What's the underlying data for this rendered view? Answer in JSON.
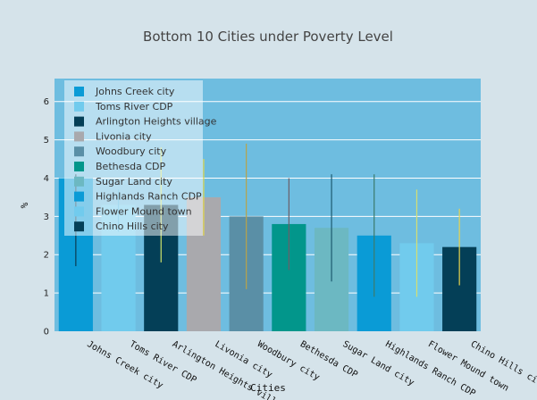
{
  "chart_data": {
    "type": "bar",
    "title": "Bottom 10 Cities under Poverty Level",
    "xlabel": "Cities",
    "ylabel": "%",
    "ylim": [
      0,
      6.6
    ],
    "yticks": [
      0,
      1,
      2,
      3,
      4,
      5,
      6
    ],
    "grid": true,
    "legend_position": "top-left",
    "background_color": "#d5e3ea",
    "plot_color": "#6ebde0",
    "series": [
      {
        "name": "Johns Creek city",
        "category": "Johns Creek city",
        "value": 4.0,
        "error": [
          1.7,
          4.1
        ],
        "color": "#0a9bd6",
        "error_color": "#0b3a52"
      },
      {
        "name": "Toms River CDP",
        "category": "Toms River CDP",
        "value": 3.3,
        "error": [
          2.6,
          3.7
        ],
        "color": "#71cbed",
        "error_color": "#4bb5e0"
      },
      {
        "name": "Arlington Heights village",
        "category": "Arlington Heights village",
        "value": 3.3,
        "error": [
          1.8,
          4.8
        ],
        "color": "#043f57",
        "error_color": "#cfe26a"
      },
      {
        "name": "Livonia city",
        "category": "Livonia city",
        "value": 3.5,
        "error": [
          2.5,
          4.5
        ],
        "color": "#a9a9ad",
        "error_color": "#e6d94a"
      },
      {
        "name": "Woodbury city",
        "category": "Woodbury city",
        "value": 3.0,
        "error": [
          1.1,
          4.9
        ],
        "color": "#5a8fa6",
        "error_color": "#b8a24a"
      },
      {
        "name": "Bethesda CDP",
        "category": "Bethesda CDP",
        "value": 2.8,
        "error": [
          1.6,
          4.0
        ],
        "color": "#02968b",
        "error_color": "#6b5d68"
      },
      {
        "name": "Sugar Land city",
        "category": "Sugar Land city",
        "value": 2.7,
        "error": [
          1.3,
          4.1
        ],
        "color": "#6cb8c2",
        "error_color": "#1d5a6e"
      },
      {
        "name": "Highlands Ranch CDP",
        "category": "Highlands Ranch CDP",
        "value": 2.5,
        "error": [
          0.9,
          4.1
        ],
        "color": "#0a9bd6",
        "error_color": "#3b7b6c"
      },
      {
        "name": "Flower Mound town",
        "category": "Flower Mound town",
        "value": 2.3,
        "error": [
          0.9,
          3.7
        ],
        "color": "#71cbed",
        "error_color": "#d6df70"
      },
      {
        "name": "Chino Hills city",
        "category": "Chino Hills city",
        "value": 2.2,
        "error": [
          1.2,
          3.2
        ],
        "color": "#043f57",
        "error_color": "#e8d44f"
      }
    ]
  }
}
